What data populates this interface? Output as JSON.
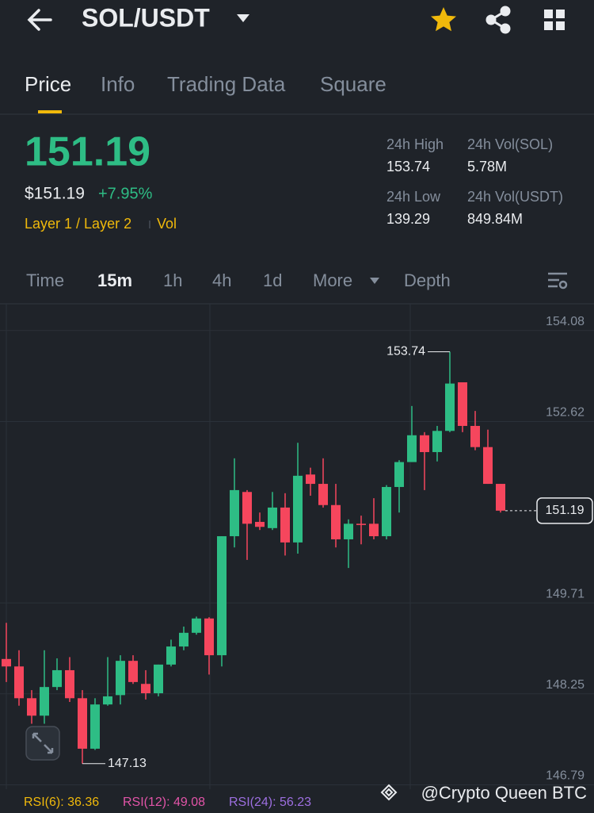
{
  "header": {
    "title": "SOL/USDT"
  },
  "tabs": [
    "Price",
    "Info",
    "Trading Data",
    "Square"
  ],
  "ticker": {
    "price": "151.19",
    "fiat": "$151.19",
    "change": "+7.95%",
    "tags": [
      "Layer 1 / Layer 2",
      "Vol"
    ],
    "stats": [
      {
        "label": "24h High",
        "value": "153.74"
      },
      {
        "label": "24h Vol(SOL)",
        "value": "5.78M"
      },
      {
        "label": "24h Low",
        "value": "139.29"
      },
      {
        "label": "24h Vol(USDT)",
        "value": "849.84M"
      }
    ]
  },
  "intervals": [
    "Time",
    "15m",
    "1h",
    "4h",
    "1d",
    "More",
    "Depth"
  ],
  "indicators": [
    "RSI(6): 36.36",
    "RSI(12): 49.08",
    "RSI(24): 56.23"
  ],
  "watermark": "@Crypto Queen BTC",
  "chart_data": {
    "type": "candlestick",
    "up_color": "#2ebd85",
    "down_color": "#f6465d",
    "open": [
      148.81,
      148.69,
      148.18,
      147.9,
      148.36,
      148.63,
      148.18,
      147.37,
      148.08,
      148.23,
      148.78,
      148.41,
      148.26,
      148.72,
      149.01,
      149.23,
      149.46,
      148.87,
      150.78,
      151.49,
      151.01,
      150.91,
      151.24,
      150.68,
      151.77,
      151.62,
      151.28,
      150.73,
      150.98,
      150.98,
      150.78,
      151.57,
      151.97,
      152.4,
      152.13,
      152.47,
      153.25,
      152.55,
      152.21,
      151.62
    ],
    "high": [
      149.39,
      148.95,
      148.31,
      148.95,
      148.82,
      148.84,
      148.31,
      148.18,
      148.84,
      148.87,
      148.87,
      148.63,
      148.72,
      149.12,
      149.33,
      149.49,
      149.48,
      150.78,
      152.03,
      151.52,
      151.16,
      151.49,
      151.47,
      152.28,
      151.88,
      152.03,
      151.62,
      151.05,
      151.11,
      151.39,
      151.6,
      152.0,
      152.87,
      152.45,
      152.55,
      153.74,
      153.25,
      152.79,
      152.49,
      151.62
    ],
    "low": [
      148.44,
      148.06,
      147.77,
      147.77,
      148.31,
      148.12,
      147.13,
      147.35,
      148.06,
      148.08,
      148.41,
      148.16,
      148.21,
      148.69,
      148.95,
      149.2,
      148.56,
      148.69,
      150.6,
      150.4,
      150.88,
      150.88,
      150.47,
      150.5,
      151.43,
      151.24,
      150.6,
      150.27,
      150.65,
      150.73,
      150.73,
      151.16,
      151.97,
      151.52,
      151.98,
      152.45,
      152.45,
      152.16,
      151.62,
      151.16
    ],
    "close": [
      148.69,
      148.18,
      147.9,
      148.36,
      148.63,
      148.18,
      147.37,
      148.08,
      148.21,
      148.78,
      148.44,
      148.26,
      148.72,
      149.01,
      149.23,
      149.46,
      148.87,
      150.78,
      151.52,
      150.98,
      150.93,
      151.24,
      150.68,
      151.75,
      151.62,
      151.28,
      150.73,
      150.98,
      150.96,
      150.78,
      151.57,
      151.97,
      152.4,
      152.13,
      152.47,
      153.23,
      152.55,
      152.21,
      151.62,
      151.19
    ],
    "ylim": [
      146.72,
      154.51
    ],
    "yticks": [
      154.08,
      152.62,
      149.71,
      148.25,
      146.79
    ],
    "annotations": {
      "max": 153.74,
      "min": 147.13,
      "last": 151.19
    }
  }
}
